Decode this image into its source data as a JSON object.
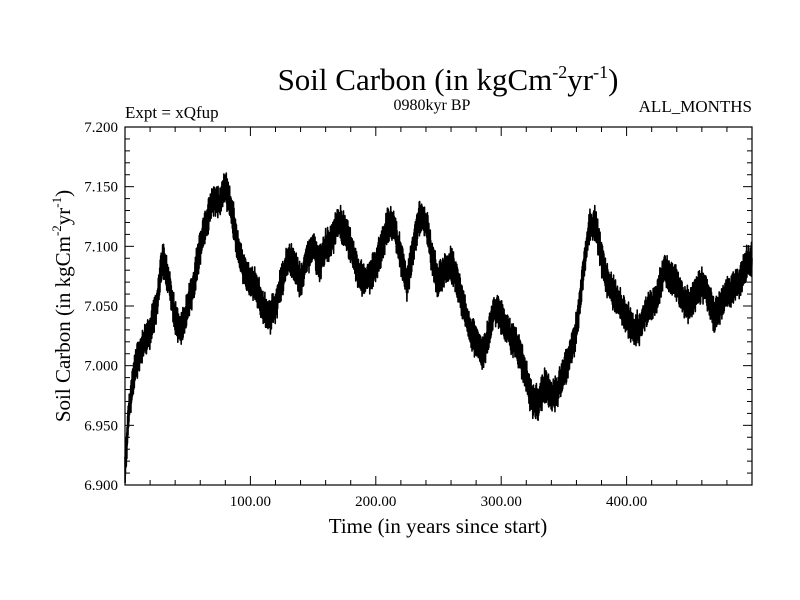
{
  "chart_data": {
    "type": "line",
    "title": {
      "main": "Soil Carbon (in kgCm",
      "sup1": "-2",
      "mid": "yr",
      "sup2": "-1",
      "close": ")"
    },
    "left_label": "Expt = xQfup",
    "center_label": "0980kyr BP",
    "right_label": "ALL_MONTHS",
    "xlabel": "Time (in years since start)",
    "ylabel": {
      "main": "Soil Carbon (in kgCm",
      "sup1": "-2",
      "mid": "yr",
      "sup2": "-1",
      "close": ")"
    },
    "xlim": [
      0,
      500
    ],
    "ylim": [
      6.9,
      7.2
    ],
    "x_ticks": [
      100,
      200,
      300,
      400
    ],
    "x_tick_labels": [
      "100.00",
      "200.00",
      "300.00",
      "400.00"
    ],
    "y_ticks": [
      6.9,
      6.95,
      7.0,
      7.05,
      7.1,
      7.15,
      7.2
    ],
    "y_tick_labels": [
      "6.900",
      "6.950",
      "7.000",
      "7.050",
      "7.100",
      "7.150",
      "7.200"
    ],
    "line_color": "#000000",
    "series": [
      {
        "name": "Soil Carbon",
        "x": [
          0,
          3,
          8,
          15,
          20,
          25,
          30,
          35,
          40,
          45,
          50,
          55,
          60,
          65,
          70,
          75,
          80,
          85,
          90,
          95,
          100,
          105,
          110,
          115,
          120,
          125,
          130,
          135,
          140,
          145,
          150,
          155,
          160,
          165,
          170,
          175,
          180,
          185,
          190,
          195,
          200,
          205,
          210,
          215,
          220,
          225,
          230,
          235,
          240,
          245,
          250,
          255,
          260,
          265,
          270,
          275,
          280,
          285,
          290,
          295,
          300,
          305,
          310,
          315,
          320,
          325,
          330,
          335,
          340,
          345,
          350,
          355,
          360,
          365,
          370,
          375,
          380,
          385,
          390,
          395,
          400,
          405,
          410,
          415,
          420,
          425,
          430,
          435,
          440,
          445,
          450,
          455,
          460,
          465,
          470,
          475,
          480,
          485,
          490,
          495,
          500
        ],
        "y": [
          6.915,
          6.96,
          7.0,
          7.02,
          7.03,
          7.05,
          7.09,
          7.07,
          7.04,
          7.03,
          7.05,
          7.07,
          7.1,
          7.12,
          7.14,
          7.135,
          7.15,
          7.13,
          7.1,
          7.08,
          7.07,
          7.065,
          7.05,
          7.04,
          7.05,
          7.07,
          7.09,
          7.085,
          7.07,
          7.09,
          7.1,
          7.085,
          7.1,
          7.105,
          7.12,
          7.115,
          7.1,
          7.08,
          7.07,
          7.075,
          7.085,
          7.1,
          7.12,
          7.115,
          7.09,
          7.07,
          7.1,
          7.125,
          7.12,
          7.09,
          7.07,
          7.08,
          7.085,
          7.07,
          7.05,
          7.03,
          7.02,
          7.01,
          7.025,
          7.05,
          7.04,
          7.03,
          7.02,
          7.01,
          6.99,
          6.97,
          6.97,
          6.985,
          6.975,
          6.98,
          6.995,
          7.01,
          7.03,
          7.075,
          7.115,
          7.12,
          7.09,
          7.07,
          7.06,
          7.05,
          7.04,
          7.03,
          7.03,
          7.045,
          7.05,
          7.06,
          7.08,
          7.075,
          7.07,
          7.055,
          7.05,
          7.06,
          7.07,
          7.06,
          7.04,
          7.05,
          7.06,
          7.065,
          7.07,
          7.085,
          7.09
        ]
      }
    ]
  }
}
